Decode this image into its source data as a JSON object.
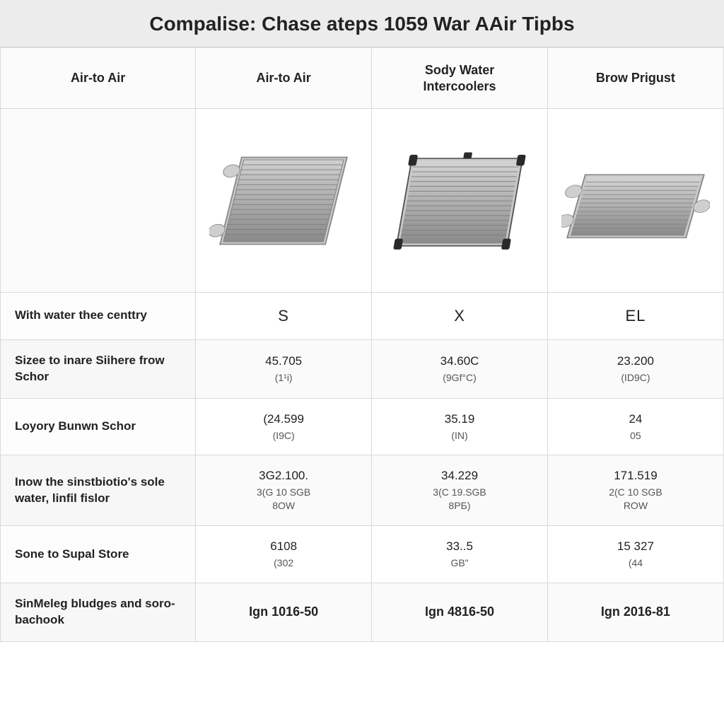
{
  "title": "Compalise: Chase ateps 1059 War AAir Tipbs",
  "columns": [
    {
      "name": "Air-to Air"
    },
    {
      "name": "Air-to Air"
    },
    {
      "name": "Sody Water\nIntercoolers"
    },
    {
      "name": "Brow Prigust"
    }
  ],
  "image_colors": {
    "fin": "#b8b8b8",
    "fin_dark": "#8a8a8a",
    "frame": "#c9c9c9",
    "frame_dark": "#9a9a9a",
    "port": "#cfcfcf",
    "cap_black": "#2a2a2a",
    "bg": "#ffffff"
  },
  "specs": [
    {
      "label": "With water thee centtry",
      "values": [
        {
          "main": "S"
        },
        {
          "main": "X"
        },
        {
          "main": "EL"
        }
      ],
      "style": "big"
    },
    {
      "label": "Sizee to inare Siihere frow Schor",
      "values": [
        {
          "main": "45.705",
          "sub": "(1¹i)"
        },
        {
          "main": "34.60C",
          "sub": "(9Gf°C)"
        },
        {
          "main": "23.200",
          "sub": "(ID9C)"
        }
      ]
    },
    {
      "label": "Loyory Bunwn Schor",
      "values": [
        {
          "main": "(24.599",
          "sub": "(I9C)"
        },
        {
          "main": "35.19",
          "sub": "(IN)"
        },
        {
          "main": "24",
          "sub": "05"
        }
      ]
    },
    {
      "label": "Inow the sinstbiotio's sole water, linfil fislor",
      "values": [
        {
          "main": "3G2.100.",
          "sub": "3(G 10 SGB\n8OW"
        },
        {
          "main": "34.229",
          "sub": "3(C 19.SGB\n8PБ)"
        },
        {
          "main": "171.519",
          "sub": "2(C 10 SGB\nROW"
        }
      ]
    },
    {
      "label": "Sone to Supal Store",
      "values": [
        {
          "main": "6108",
          "sub": "(302"
        },
        {
          "main": "33..5",
          "sub": "GB\""
        },
        {
          "main": "15 327",
          "sub": "(44"
        }
      ]
    },
    {
      "label": "SinMeleg bludges and soro-bachook",
      "values": [
        {
          "main": "Ign 1016-50"
        },
        {
          "main": "Ign 4816-50"
        },
        {
          "main": "Ign 2016-81"
        }
      ],
      "style": "bold"
    }
  ],
  "layout": {
    "col_widths": [
      "27%",
      "24.33%",
      "24.33%",
      "24.33%"
    ],
    "title_bg": "#ececec",
    "border_color": "#d9d9d9"
  }
}
